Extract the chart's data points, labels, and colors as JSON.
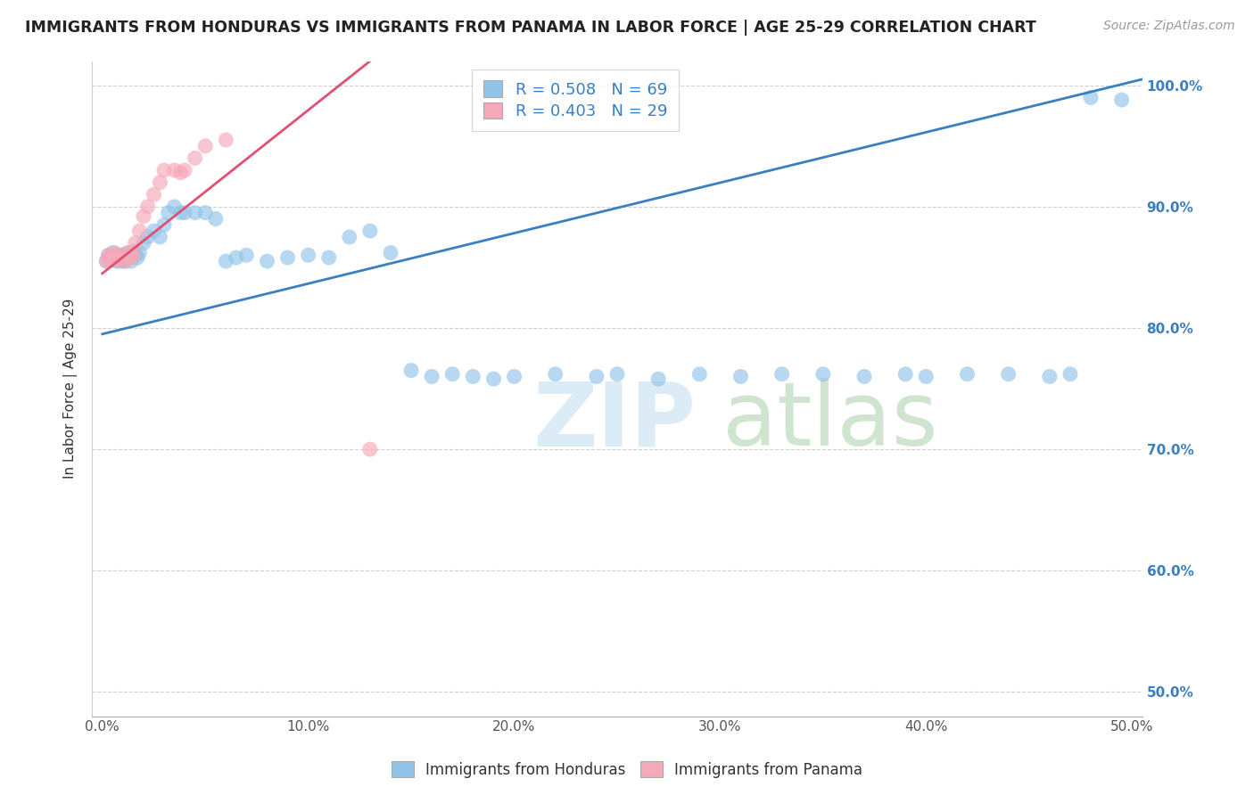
{
  "title": "IMMIGRANTS FROM HONDURAS VS IMMIGRANTS FROM PANAMA IN LABOR FORCE | AGE 25-29 CORRELATION CHART",
  "source": "Source: ZipAtlas.com",
  "ylabel": "In Labor Force | Age 25-29",
  "xlim": [
    -0.005,
    0.505
  ],
  "ylim": [
    0.48,
    1.02
  ],
  "xticks": [
    0.0,
    0.1,
    0.2,
    0.3,
    0.4,
    0.5
  ],
  "yticks": [
    0.5,
    0.6,
    0.7,
    0.8,
    0.9,
    1.0
  ],
  "xtick_labels": [
    "0.0%",
    "10.0%",
    "20.0%",
    "30.0%",
    "40.0%",
    "50.0%"
  ],
  "ytick_labels": [
    "50.0%",
    "60.0%",
    "70.0%",
    "80.0%",
    "90.0%",
    "100.0%"
  ],
  "blue_R": 0.508,
  "blue_N": 69,
  "pink_R": 0.403,
  "pink_N": 29,
  "blue_color": "#91c4e8",
  "pink_color": "#f5a8b8",
  "blue_line_color": "#3a7fc1",
  "pink_line_color": "#e05070",
  "legend_blue_label": "Immigrants from Honduras",
  "legend_pink_label": "Immigrants from Panama",
  "blue_line_x0": 0.0,
  "blue_line_y0": 0.795,
  "blue_line_x1": 0.505,
  "blue_line_y1": 1.005,
  "pink_line_x0": 0.0,
  "pink_line_y0": 0.845,
  "pink_line_x1": 0.13,
  "pink_line_y1": 1.02,
  "honduras_x": [
    0.002,
    0.003,
    0.004,
    0.005,
    0.005,
    0.006,
    0.007,
    0.007,
    0.008,
    0.008,
    0.009,
    0.009,
    0.01,
    0.01,
    0.011,
    0.011,
    0.012,
    0.013,
    0.013,
    0.014,
    0.015,
    0.016,
    0.017,
    0.018,
    0.02,
    0.022,
    0.025,
    0.028,
    0.03,
    0.032,
    0.035,
    0.038,
    0.04,
    0.045,
    0.05,
    0.055,
    0.06,
    0.065,
    0.07,
    0.08,
    0.09,
    0.1,
    0.11,
    0.12,
    0.13,
    0.14,
    0.15,
    0.16,
    0.17,
    0.18,
    0.19,
    0.2,
    0.22,
    0.24,
    0.25,
    0.27,
    0.29,
    0.31,
    0.33,
    0.35,
    0.37,
    0.39,
    0.4,
    0.42,
    0.44,
    0.46,
    0.47,
    0.48,
    0.495
  ],
  "honduras_y": [
    0.855,
    0.86,
    0.858,
    0.862,
    0.856,
    0.86,
    0.855,
    0.858,
    0.856,
    0.86,
    0.855,
    0.858,
    0.86,
    0.856,
    0.855,
    0.858,
    0.862,
    0.858,
    0.86,
    0.855,
    0.863,
    0.86,
    0.858,
    0.862,
    0.87,
    0.875,
    0.88,
    0.875,
    0.885,
    0.895,
    0.9,
    0.895,
    0.895,
    0.895,
    0.895,
    0.89,
    0.855,
    0.858,
    0.86,
    0.855,
    0.858,
    0.86,
    0.858,
    0.875,
    0.88,
    0.862,
    0.765,
    0.76,
    0.762,
    0.76,
    0.758,
    0.76,
    0.762,
    0.76,
    0.762,
    0.758,
    0.762,
    0.76,
    0.762,
    0.762,
    0.76,
    0.762,
    0.76,
    0.762,
    0.762,
    0.76,
    0.762,
    0.99,
    0.988
  ],
  "panama_x": [
    0.002,
    0.003,
    0.004,
    0.005,
    0.005,
    0.006,
    0.007,
    0.008,
    0.009,
    0.01,
    0.011,
    0.012,
    0.013,
    0.014,
    0.015,
    0.016,
    0.018,
    0.02,
    0.022,
    0.025,
    0.028,
    0.03,
    0.035,
    0.038,
    0.04,
    0.045,
    0.05,
    0.06,
    0.13
  ],
  "panama_y": [
    0.855,
    0.86,
    0.856,
    0.858,
    0.86,
    0.862,
    0.856,
    0.858,
    0.86,
    0.858,
    0.855,
    0.858,
    0.862,
    0.858,
    0.86,
    0.87,
    0.88,
    0.892,
    0.9,
    0.91,
    0.92,
    0.93,
    0.93,
    0.928,
    0.93,
    0.94,
    0.95,
    0.955,
    0.7
  ]
}
